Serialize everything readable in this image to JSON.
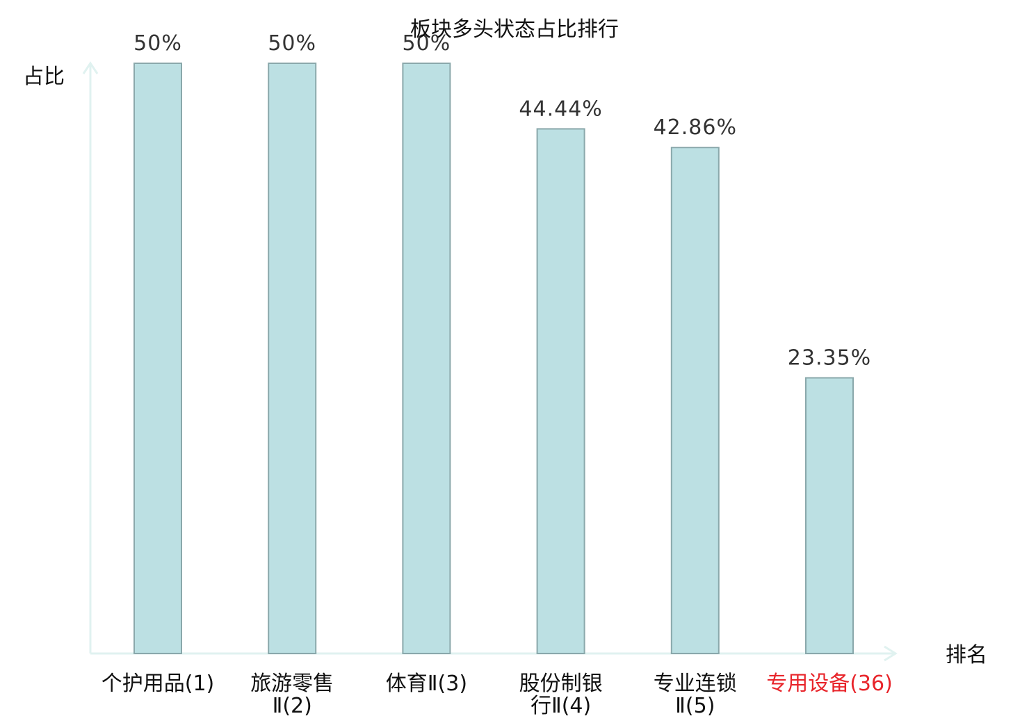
{
  "colors": {
    "bar_fill": "#bce0e3",
    "bar_stroke": "#8aa8ab",
    "axis": "#e0f2f0",
    "highlight": "#e8242a",
    "text": "#111111",
    "value_text": "#333333"
  },
  "chart_data": {
    "type": "bar",
    "title": "板块多头状态占比排行",
    "ylabel": "占比",
    "xlabel": "排名",
    "ylim": [
      0,
      50
    ],
    "grid": false,
    "categories": [
      {
        "lines": [
          "个护用品(1)"
        ],
        "highlight": false
      },
      {
        "lines": [
          "旅游零售",
          "Ⅱ(2)"
        ],
        "highlight": false
      },
      {
        "lines": [
          "体育Ⅱ(3)"
        ],
        "highlight": false
      },
      {
        "lines": [
          "股份制银",
          "行Ⅱ(4)"
        ],
        "highlight": false
      },
      {
        "lines": [
          "专业连锁",
          "Ⅱ(5)"
        ],
        "highlight": false
      },
      {
        "lines": [
          "专用设备(36)"
        ],
        "highlight": true
      }
    ],
    "values": [
      50,
      50,
      50,
      44.44,
      42.86,
      23.35
    ],
    "value_labels": [
      "50%",
      "50%",
      "50%",
      "44.44%",
      "42.86%",
      "23.35%"
    ]
  }
}
